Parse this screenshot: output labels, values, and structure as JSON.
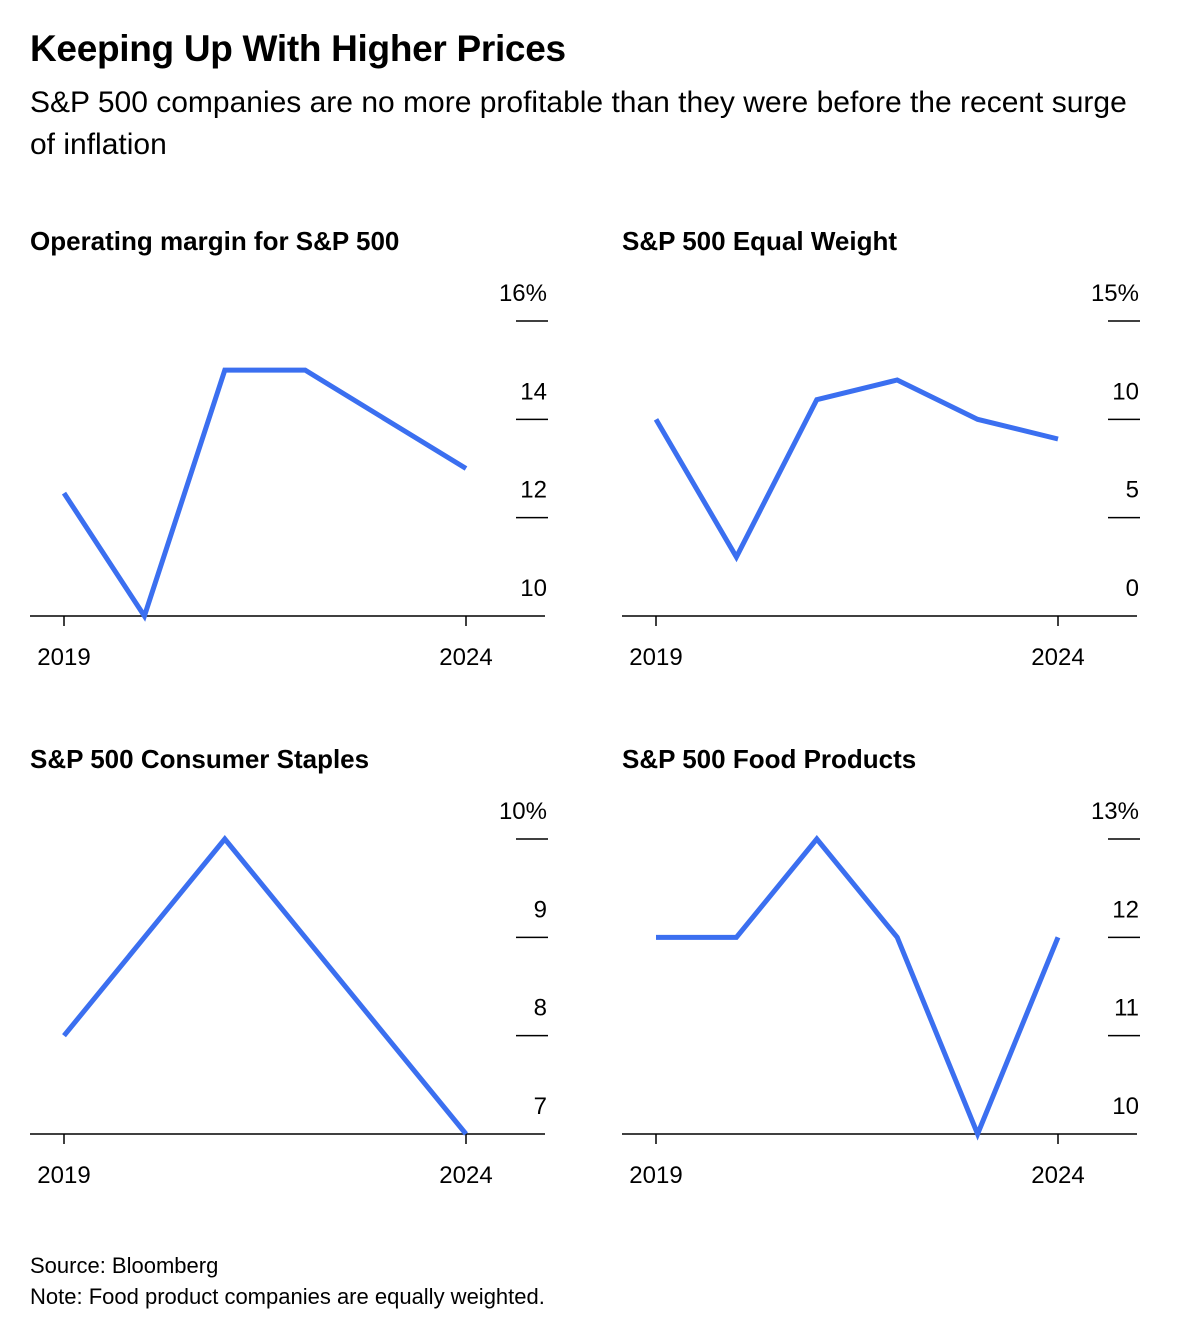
{
  "title": "Keeping Up With Higher Prices",
  "subtitle": "S&P 500 companies are no more profitable than they were before the recent surge of inflation",
  "colors": {
    "line": "#3B6FF0",
    "axis": "#000000"
  },
  "footer": {
    "source": "Source: Bloomberg",
    "note": "Note: Food product companies are equally weighted."
  },
  "chart_data": [
    {
      "type": "line",
      "title": "Operating margin for S&P 500",
      "x": [
        2019,
        2020,
        2021,
        2022,
        2023,
        2024
      ],
      "x_tick_labels": [
        "2019",
        "2024"
      ],
      "series": [
        {
          "values": [
            12.5,
            10.0,
            15.0,
            15.0,
            14.0,
            13.0
          ]
        }
      ],
      "ylim": [
        10,
        16
      ],
      "y_ticks": [
        10,
        12,
        14,
        16
      ],
      "y_tick_labels": [
        "10",
        "12",
        "14",
        "16%"
      ],
      "axis_position": "right"
    },
    {
      "type": "line",
      "title": "S&P 500 Equal Weight",
      "x": [
        2019,
        2020,
        2021,
        2022,
        2023,
        2024
      ],
      "x_tick_labels": [
        "2019",
        "2024"
      ],
      "series": [
        {
          "values": [
            10.0,
            3.0,
            11.0,
            12.0,
            10.0,
            9.0
          ]
        }
      ],
      "ylim": [
        0,
        15
      ],
      "y_ticks": [
        0,
        5,
        10,
        15
      ],
      "y_tick_labels": [
        "0",
        "5",
        "10",
        "15%"
      ],
      "axis_position": "right"
    },
    {
      "type": "line",
      "title": "S&P 500 Consumer Staples",
      "x": [
        2019,
        2020,
        2021,
        2022,
        2023,
        2024
      ],
      "x_tick_labels": [
        "2019",
        "2024"
      ],
      "series": [
        {
          "values": [
            8.0,
            9.0,
            10.0,
            9.0,
            8.0,
            7.0
          ]
        }
      ],
      "ylim": [
        7,
        10
      ],
      "y_ticks": [
        7,
        8,
        9,
        10
      ],
      "y_tick_labels": [
        "7",
        "8",
        "9",
        "10%"
      ],
      "axis_position": "right"
    },
    {
      "type": "line",
      "title": "S&P 500 Food Products",
      "x": [
        2019,
        2020,
        2021,
        2022,
        2023,
        2024
      ],
      "x_tick_labels": [
        "2019",
        "2024"
      ],
      "series": [
        {
          "values": [
            12.0,
            12.0,
            13.0,
            12.0,
            10.0,
            12.0
          ]
        }
      ],
      "ylim": [
        10,
        13
      ],
      "y_ticks": [
        10,
        11,
        12,
        13
      ],
      "y_tick_labels": [
        "10",
        "11",
        "12",
        "13%"
      ],
      "axis_position": "right"
    }
  ]
}
